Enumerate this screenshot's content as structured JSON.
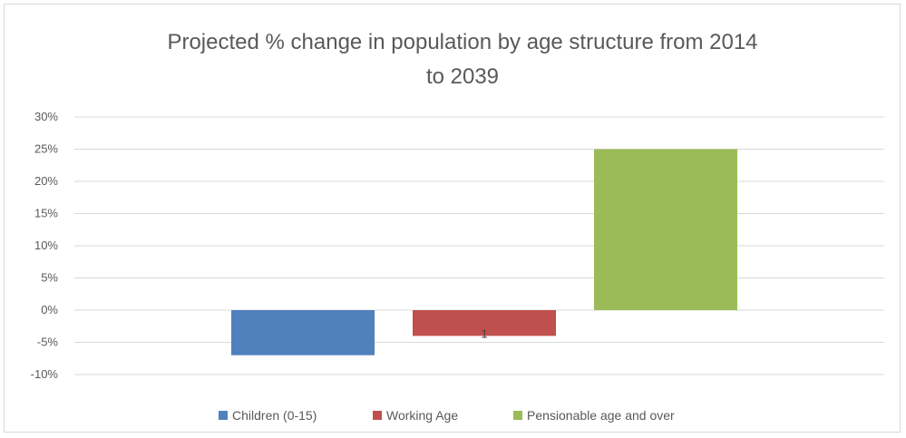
{
  "chart_data": {
    "type": "bar",
    "title_lines": [
      "Projected % change in population by age structure from 2014",
      "to 2039"
    ],
    "categories": [
      "Children (0-15)",
      "Working Age",
      "Pensionable age and over"
    ],
    "values": [
      -7,
      -4,
      25
    ],
    "colors": [
      "#4f81bd",
      "#c0504d",
      "#9bbb59"
    ],
    "ylim": [
      -10,
      30
    ],
    "yticks": [
      30,
      25,
      20,
      15,
      10,
      5,
      0,
      -5,
      -10
    ],
    "tick_labels": [
      "30%",
      "25%",
      "20%",
      "15%",
      "10%",
      "5%",
      "0%",
      "-5%",
      "-10%"
    ],
    "data_labels": [
      "",
      "1",
      ""
    ],
    "legend": [
      "Children (0-15)",
      "Working Age",
      "Pensionable age and over"
    ],
    "legend_position": "bottom",
    "grid": true,
    "grid_color": "#d9d9d9"
  }
}
